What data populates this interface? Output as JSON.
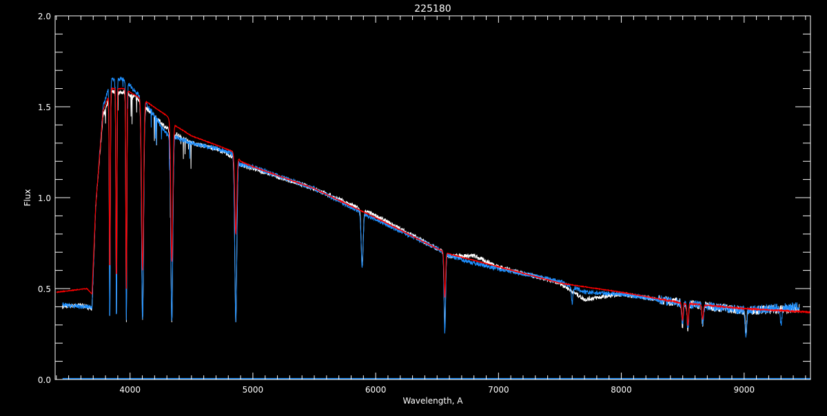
{
  "chart_data": {
    "type": "line",
    "title": "225180",
    "xlabel": "Wavelength, A",
    "ylabel": "Flux",
    "xlim": [
      3390,
      9540
    ],
    "ylim": [
      0.0,
      2.0
    ],
    "xticks": [
      4000,
      5000,
      6000,
      7000,
      8000,
      9000
    ],
    "xtick_labels": [
      "4000",
      "5000",
      "6000",
      "7000",
      "8000",
      "9000"
    ],
    "yticks": [
      0.0,
      0.5,
      1.0,
      1.5,
      2.0
    ],
    "ytick_labels": [
      "0.0",
      "0.5",
      "1.0",
      "1.5",
      "2.0"
    ],
    "grid": false,
    "background": "#000000",
    "series": [
      {
        "color": "#ffffff",
        "x": [
          3450,
          3600,
          3690,
          3720,
          3780,
          3850,
          3950,
          4050,
          4150,
          4300,
          4500,
          4700,
          4850,
          4900,
          5000,
          5500,
          6000,
          6500,
          6600,
          6800,
          7000,
          7500,
          7700,
          8000,
          8500,
          9000,
          9450
        ],
        "y": [
          0.4,
          0.41,
          0.39,
          0.95,
          1.45,
          1.58,
          1.58,
          1.55,
          1.48,
          1.38,
          1.3,
          1.27,
          1.22,
          1.18,
          1.16,
          1.05,
          0.9,
          0.72,
          0.68,
          0.68,
          0.62,
          0.53,
          0.44,
          0.47,
          0.42,
          0.38,
          0.39
        ],
        "lines": [
          [
            3835,
            0.32
          ],
          [
            3889,
            0.32
          ],
          [
            3970,
            0.32
          ],
          [
            4102,
            0.32
          ],
          [
            4340,
            0.32
          ],
          [
            4861,
            0.32
          ],
          [
            5890,
            0.62
          ],
          [
            6563,
            0.28
          ],
          [
            8498,
            0.3
          ],
          [
            8542,
            0.28
          ],
          [
            8662,
            0.3
          ],
          [
            9015,
            0.25
          ]
        ]
      },
      {
        "color": "#1e90ff",
        "x": [
          3450,
          3600,
          3690,
          3720,
          3780,
          3850,
          3950,
          4050,
          4150,
          4300,
          4500,
          4700,
          4850,
          4900,
          5000,
          5500,
          6000,
          6500,
          6600,
          6800,
          7000,
          7500,
          7700,
          8000,
          8500,
          9000,
          9450
        ],
        "y": [
          0.41,
          0.4,
          0.4,
          0.95,
          1.5,
          1.65,
          1.65,
          1.58,
          1.5,
          1.35,
          1.3,
          1.27,
          1.24,
          1.18,
          1.17,
          1.05,
          0.88,
          0.72,
          0.68,
          0.64,
          0.61,
          0.54,
          0.48,
          0.47,
          0.42,
          0.38,
          0.4
        ],
        "lines": [
          [
            3835,
            0.32
          ],
          [
            3889,
            0.32
          ],
          [
            3970,
            0.32
          ],
          [
            4102,
            0.32
          ],
          [
            4340,
            0.32
          ],
          [
            4861,
            0.32
          ],
          [
            5890,
            0.62
          ],
          [
            6563,
            0.25
          ],
          [
            7600,
            0.42
          ],
          [
            8498,
            0.3
          ],
          [
            8542,
            0.28
          ],
          [
            8662,
            0.3
          ],
          [
            9015,
            0.22
          ],
          [
            9300,
            0.3
          ]
        ]
      },
      {
        "color": "#ff0000",
        "x": [
          3400,
          3650,
          3690,
          3720,
          3780,
          3850,
          3950,
          4050,
          4150,
          4300,
          4360,
          4500,
          4700,
          4850,
          4900,
          5000,
          5500,
          6000,
          6500,
          6600,
          7000,
          7500,
          8000,
          8500,
          9000,
          9540
        ],
        "y": [
          0.48,
          0.5,
          0.47,
          0.95,
          1.48,
          1.6,
          1.6,
          1.56,
          1.52,
          1.45,
          1.4,
          1.34,
          1.29,
          1.25,
          1.2,
          1.17,
          1.05,
          0.89,
          0.72,
          0.69,
          0.62,
          0.53,
          0.48,
          0.42,
          0.39,
          0.37
        ],
        "lines": [
          [
            3835,
            0.6
          ],
          [
            3889,
            0.55
          ],
          [
            3970,
            0.5
          ],
          [
            4102,
            0.6
          ],
          [
            4340,
            0.65
          ],
          [
            4861,
            0.8
          ],
          [
            6563,
            0.45
          ],
          [
            8498,
            0.33
          ],
          [
            8542,
            0.3
          ],
          [
            8662,
            0.33
          ]
        ]
      }
    ]
  }
}
